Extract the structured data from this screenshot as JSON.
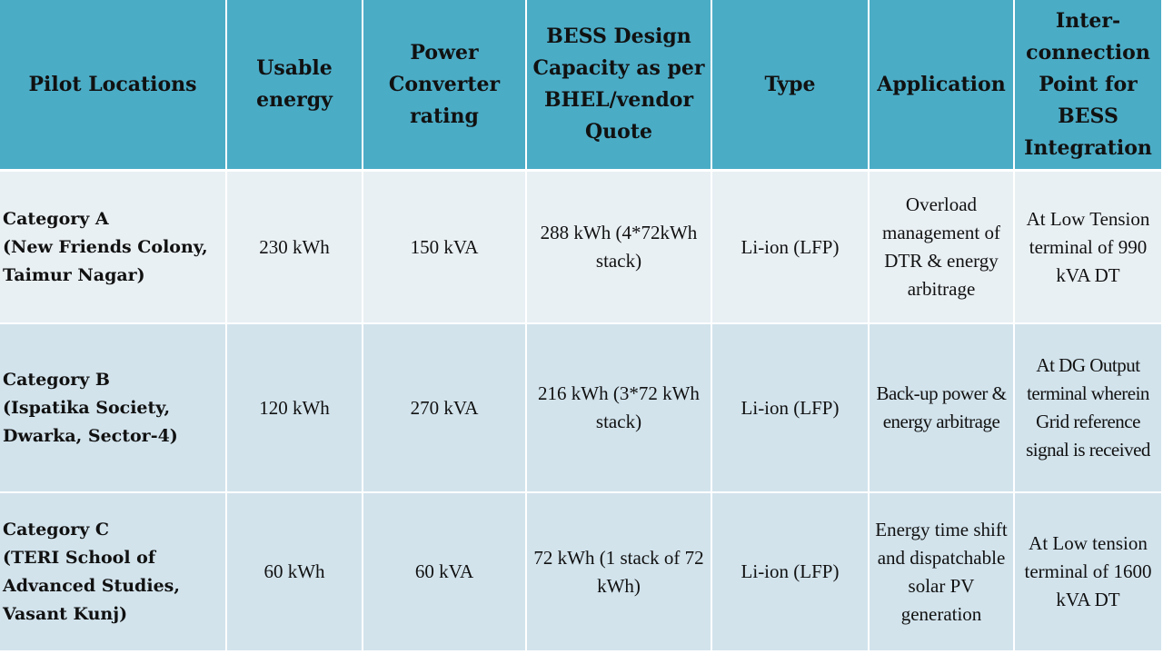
{
  "table": {
    "headers": [
      {
        "id": "location",
        "label": "Pilot Locations"
      },
      {
        "id": "usable_energy",
        "label": "Usable energy"
      },
      {
        "id": "converter",
        "label": "Power Converter rating"
      },
      {
        "id": "design_capacity",
        "label": "BESS Design Capacity as per BHEL/vendor Quote"
      },
      {
        "id": "type",
        "label": "Type"
      },
      {
        "id": "application",
        "label": "Application"
      },
      {
        "id": "interconnection",
        "label": "Inter-connection Point for BESS Integration"
      }
    ],
    "rows": [
      {
        "category": "Category A",
        "site": "(New Friends Colony, Taimur Nagar)",
        "usable_energy": "230 kWh",
        "converter": "150 kVA",
        "design_capacity": "288 kWh (4*72kWh stack)",
        "type": "Li-ion (LFP)",
        "application": "Overload management of DTR & energy arbitrage",
        "interconnection": "At Low Tension terminal of 990 kVA DT"
      },
      {
        "category": "Category B",
        "site": "(Ispatika Society, Dwarka, Sector-4)",
        "usable_energy": "120 kWh",
        "converter": "270 kVA",
        "design_capacity": "216 kWh (3*72 kWh stack)",
        "type": "Li-ion (LFP)",
        "application": "Back-up power & energy arbitrage",
        "interconnection": "At DG Output terminal wherein Grid reference signal is received"
      },
      {
        "category": "Category C",
        "site": "(TERI School of Advanced Studies, Vasant Kunj)",
        "usable_energy": "60 kWh",
        "converter": "60 kVA",
        "design_capacity": "72 kWh (1 stack of 72 kWh)",
        "type": "Li-ion (LFP)",
        "application": "Energy time shift and dispatchable solar PV generation",
        "interconnection": "At Low tension terminal of 1600 kVA DT"
      }
    ]
  },
  "colors": {
    "header_bg": "#4bacc6",
    "row_light": "#e9f0f4",
    "row_band": "#d2e3ec",
    "grid_line": "#ffffff"
  }
}
